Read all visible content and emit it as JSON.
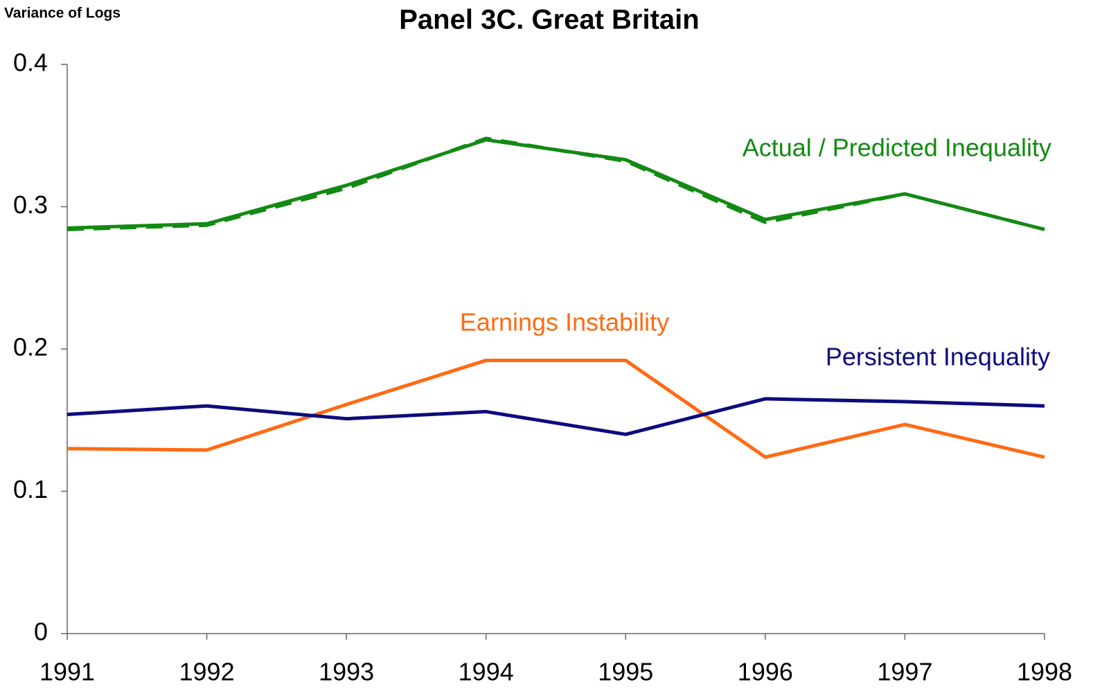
{
  "chart_data": {
    "type": "line",
    "title": "Panel 3C.  Great Britain",
    "y_label": "Variance of Logs",
    "categories": [
      "1991",
      "1992",
      "1993",
      "1994",
      "1995",
      "1996",
      "1997",
      "1998"
    ],
    "series": [
      {
        "name": "Actual / Predicted Inequality",
        "color": "#138a13",
        "values": [
          0.285,
          0.288,
          0.315,
          0.347,
          0.333,
          0.291,
          0.309,
          0.284
        ]
      },
      {
        "color": "#138a13",
        "dashed": true,
        "values": [
          0.284,
          0.287,
          0.313,
          0.348,
          0.332,
          0.289,
          0.309,
          0.284
        ]
      },
      {
        "name": "Earnings Instability",
        "color": "#ff6a13",
        "values": [
          0.13,
          0.129,
          0.161,
          0.192,
          0.192,
          0.124,
          0.147,
          0.124
        ]
      },
      {
        "name": "Persistent Inequality",
        "color": "#0c0c7e",
        "values": [
          0.154,
          0.16,
          0.151,
          0.156,
          0.14,
          0.165,
          0.163,
          0.16
        ]
      }
    ],
    "ylim": [
      0,
      0.4
    ],
    "yticks": [
      0,
      0.1,
      0.2,
      0.3,
      0.4
    ]
  }
}
